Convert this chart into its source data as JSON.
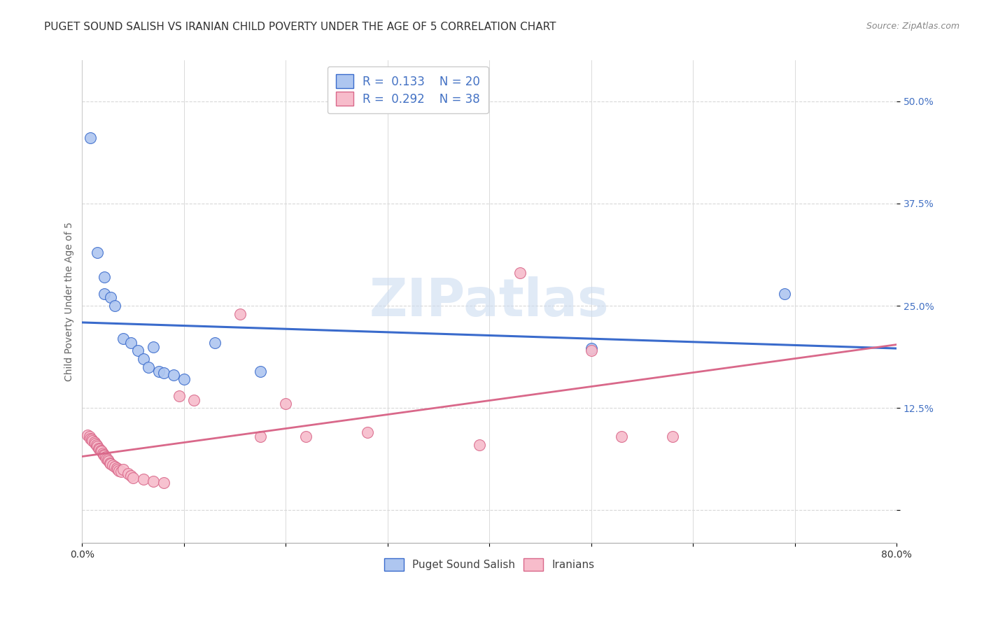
{
  "title": "PUGET SOUND SALISH VS IRANIAN CHILD POVERTY UNDER THE AGE OF 5 CORRELATION CHART",
  "source": "Source: ZipAtlas.com",
  "ylabel": "Child Poverty Under the Age of 5",
  "xlim": [
    0.0,
    0.8
  ],
  "ylim": [
    -0.04,
    0.55
  ],
  "yticks": [
    0.0,
    0.125,
    0.25,
    0.375,
    0.5
  ],
  "ytick_labels": [
    "",
    "12.5%",
    "25.0%",
    "37.5%",
    "50.0%"
  ],
  "xticks": [
    0.0,
    0.1,
    0.2,
    0.3,
    0.4,
    0.5,
    0.6,
    0.7,
    0.8
  ],
  "xtick_labels": [
    "0.0%",
    "",
    "",
    "",
    "",
    "",
    "",
    "",
    "80.0%"
  ],
  "background_color": "#ffffff",
  "grid_color": "#d8d8d8",
  "watermark_text": "ZIPatlas",
  "blue_color": "#aec6f0",
  "blue_line_color": "#3a6bcc",
  "pink_color": "#f7bccb",
  "pink_line_color": "#d9688a",
  "tick_color": "#4472c4",
  "title_color": "#333333",
  "source_color": "#888888",
  "ylabel_color": "#666666",
  "blue_scatter": [
    [
      0.008,
      0.455
    ],
    [
      0.015,
      0.315
    ],
    [
      0.022,
      0.285
    ],
    [
      0.022,
      0.265
    ],
    [
      0.028,
      0.26
    ],
    [
      0.032,
      0.25
    ],
    [
      0.04,
      0.21
    ],
    [
      0.048,
      0.205
    ],
    [
      0.055,
      0.195
    ],
    [
      0.06,
      0.185
    ],
    [
      0.065,
      0.175
    ],
    [
      0.07,
      0.2
    ],
    [
      0.075,
      0.17
    ],
    [
      0.08,
      0.168
    ],
    [
      0.09,
      0.165
    ],
    [
      0.1,
      0.16
    ],
    [
      0.13,
      0.205
    ],
    [
      0.175,
      0.17
    ],
    [
      0.5,
      0.198
    ],
    [
      0.69,
      0.265
    ]
  ],
  "pink_scatter": [
    [
      0.005,
      0.092
    ],
    [
      0.007,
      0.09
    ],
    [
      0.008,
      0.088
    ],
    [
      0.009,
      0.087
    ],
    [
      0.01,
      0.085
    ],
    [
      0.012,
      0.083
    ],
    [
      0.013,
      0.082
    ],
    [
      0.014,
      0.08
    ],
    [
      0.015,
      0.078
    ],
    [
      0.016,
      0.076
    ],
    [
      0.017,
      0.075
    ],
    [
      0.018,
      0.073
    ],
    [
      0.019,
      0.072
    ],
    [
      0.02,
      0.07
    ],
    [
      0.021,
      0.068
    ],
    [
      0.022,
      0.067
    ],
    [
      0.023,
      0.065
    ],
    [
      0.024,
      0.063
    ],
    [
      0.025,
      0.062
    ],
    [
      0.026,
      0.06
    ],
    [
      0.027,
      0.058
    ],
    [
      0.028,
      0.057
    ],
    [
      0.03,
      0.055
    ],
    [
      0.032,
      0.053
    ],
    [
      0.034,
      0.052
    ],
    [
      0.035,
      0.05
    ],
    [
      0.036,
      0.048
    ],
    [
      0.038,
      0.047
    ],
    [
      0.04,
      0.05
    ],
    [
      0.045,
      0.045
    ],
    [
      0.048,
      0.042
    ],
    [
      0.05,
      0.04
    ],
    [
      0.06,
      0.038
    ],
    [
      0.07,
      0.035
    ],
    [
      0.08,
      0.034
    ],
    [
      0.095,
      0.14
    ],
    [
      0.11,
      0.135
    ],
    [
      0.155,
      0.24
    ],
    [
      0.175,
      0.09
    ],
    [
      0.2,
      0.13
    ],
    [
      0.22,
      0.09
    ],
    [
      0.28,
      0.095
    ],
    [
      0.39,
      0.08
    ],
    [
      0.43,
      0.29
    ],
    [
      0.5,
      0.195
    ],
    [
      0.53,
      0.09
    ],
    [
      0.58,
      0.09
    ]
  ],
  "title_fontsize": 11,
  "label_fontsize": 10,
  "tick_fontsize": 10,
  "source_fontsize": 9,
  "legend_fontsize": 12
}
